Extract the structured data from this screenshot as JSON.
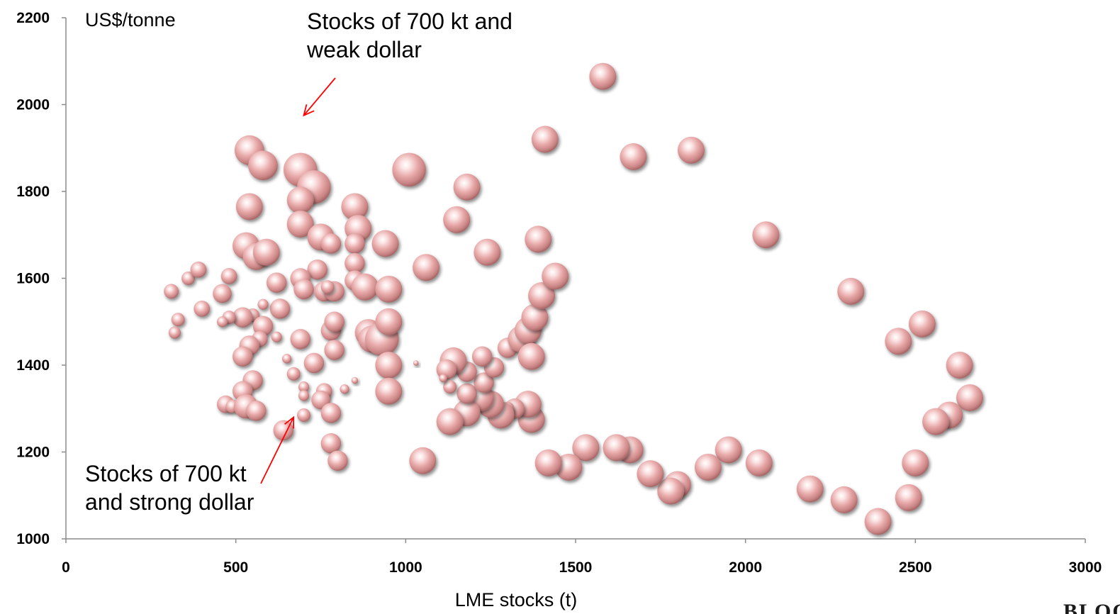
{
  "chart_data": {
    "type": "bubble",
    "xlabel": "LME stocks (t)",
    "ylabel": "US$/tonne",
    "xlim": [
      0,
      3000
    ],
    "ylim": [
      1000,
      2200
    ],
    "xticks": [
      "0",
      "500",
      "1000",
      "1500",
      "2000",
      "2500",
      "3000"
    ],
    "yticks": [
      "1000",
      "1200",
      "1400",
      "1600",
      "1800",
      "2000",
      "2200"
    ],
    "bubble_color": "#e8a9a9",
    "annotations": [
      {
        "text": [
          "Stocks of 700 kt and",
          "weak dollar"
        ],
        "points_to": [
          700,
          1975
        ]
      },
      {
        "text": [
          "Stocks of 700 kt",
          "and strong dollar"
        ],
        "points_to": [
          670,
          1280
        ]
      }
    ],
    "points": [
      [
        1580,
        2065,
        2
      ],
      [
        1410,
        1920,
        2
      ],
      [
        1670,
        1880,
        2
      ],
      [
        1840,
        1895,
        2
      ],
      [
        2060,
        1700,
        2
      ],
      [
        2310,
        1570,
        2
      ],
      [
        2450,
        1455,
        2
      ],
      [
        2520,
        1495,
        2
      ],
      [
        2630,
        1400,
        2
      ],
      [
        2660,
        1325,
        2
      ],
      [
        2600,
        1285,
        2
      ],
      [
        2560,
        1270,
        2
      ],
      [
        2500,
        1175,
        2
      ],
      [
        2480,
        1095,
        2
      ],
      [
        2390,
        1040,
        2
      ],
      [
        2290,
        1090,
        2
      ],
      [
        2190,
        1115,
        2
      ],
      [
        2040,
        1175,
        2
      ],
      [
        1950,
        1205,
        2
      ],
      [
        1890,
        1165,
        2
      ],
      [
        1800,
        1125,
        2
      ],
      [
        1780,
        1110,
        2
      ],
      [
        1720,
        1150,
        2
      ],
      [
        1660,
        1205,
        2
      ],
      [
        1620,
        1210,
        2
      ],
      [
        1530,
        1210,
        2
      ],
      [
        1480,
        1165,
        2
      ],
      [
        1420,
        1175,
        2
      ],
      [
        1370,
        1275,
        2
      ],
      [
        1360,
        1310,
        2
      ],
      [
        1320,
        1300,
        1.5
      ],
      [
        1300,
        1300,
        1
      ],
      [
        1280,
        1285,
        2
      ],
      [
        1250,
        1310,
        2
      ],
      [
        1220,
        1325,
        2
      ],
      [
        1180,
        1290,
        2
      ],
      [
        1130,
        1270,
        2
      ],
      [
        1180,
        1335,
        1.5
      ],
      [
        1230,
        1360,
        1.5
      ],
      [
        1180,
        1385,
        1.5
      ],
      [
        1260,
        1395,
        1.5
      ],
      [
        1225,
        1420,
        1.5
      ],
      [
        1140,
        1410,
        2
      ],
      [
        1120,
        1390,
        1.5
      ],
      [
        1130,
        1350,
        1
      ],
      [
        1110,
        1370,
        0.6
      ],
      [
        1300,
        1440,
        1.5
      ],
      [
        1340,
        1460,
        2
      ],
      [
        1360,
        1480,
        2
      ],
      [
        1380,
        1510,
        2
      ],
      [
        1400,
        1560,
        2
      ],
      [
        1440,
        1605,
        2
      ],
      [
        1370,
        1420,
        2
      ],
      [
        1390,
        1690,
        2
      ],
      [
        1240,
        1660,
        2
      ],
      [
        1150,
        1735,
        2
      ],
      [
        1180,
        1810,
        2
      ],
      [
        1010,
        1850,
        2.5
      ],
      [
        1060,
        1625,
        2
      ],
      [
        1050,
        1180,
        2
      ],
      [
        1030,
        1405,
        0.4
      ],
      [
        540,
        1895,
        2.2
      ],
      [
        580,
        1860,
        2.2
      ],
      [
        690,
        1850,
        2.5
      ],
      [
        730,
        1810,
        2.5
      ],
      [
        690,
        1780,
        2
      ],
      [
        850,
        1765,
        2
      ],
      [
        540,
        1765,
        2
      ],
      [
        860,
        1715,
        2
      ],
      [
        690,
        1725,
        2
      ],
      [
        750,
        1695,
        2
      ],
      [
        850,
        1680,
        1.5
      ],
      [
        940,
        1680,
        2
      ],
      [
        530,
        1675,
        2
      ],
      [
        560,
        1650,
        2
      ],
      [
        590,
        1660,
        2
      ],
      [
        780,
        1680,
        1.5
      ],
      [
        850,
        1635,
        1.5
      ],
      [
        740,
        1620,
        1.5
      ],
      [
        690,
        1600,
        1.5
      ],
      [
        620,
        1590,
        1.5
      ],
      [
        700,
        1575,
        1.5
      ],
      [
        760,
        1570,
        1.5
      ],
      [
        790,
        1570,
        1.5
      ],
      [
        850,
        1595,
        1.5
      ],
      [
        880,
        1580,
        2
      ],
      [
        950,
        1575,
        2
      ],
      [
        770,
        1580,
        1
      ],
      [
        630,
        1530,
        1.5
      ],
      [
        580,
        1540,
        0.8
      ],
      [
        550,
        1515,
        1
      ],
      [
        520,
        1510,
        1.5
      ],
      [
        480,
        1510,
        1
      ],
      [
        460,
        1500,
        0.8
      ],
      [
        400,
        1530,
        1.2
      ],
      [
        330,
        1505,
        1
      ],
      [
        320,
        1475,
        0.9
      ],
      [
        310,
        1570,
        1.1
      ],
      [
        360,
        1600,
        1
      ],
      [
        390,
        1620,
        1.2
      ],
      [
        480,
        1605,
        1.2
      ],
      [
        460,
        1565,
        1.4
      ],
      [
        580,
        1490,
        1.5
      ],
      [
        570,
        1460,
        1.2
      ],
      [
        620,
        1465,
        0.8
      ],
      [
        690,
        1460,
        1.5
      ],
      [
        540,
        1445,
        1.5
      ],
      [
        520,
        1420,
        1.5
      ],
      [
        650,
        1415,
        0.7
      ],
      [
        730,
        1405,
        1.5
      ],
      [
        780,
        1480,
        1.5
      ],
      [
        790,
        1500,
        1.5
      ],
      [
        790,
        1435,
        1.5
      ],
      [
        890,
        1475,
        2
      ],
      [
        900,
        1460,
        2
      ],
      [
        930,
        1460,
        2.5
      ],
      [
        950,
        1500,
        2
      ],
      [
        950,
        1400,
        2
      ],
      [
        950,
        1340,
        2
      ],
      [
        550,
        1365,
        1.5
      ],
      [
        670,
        1380,
        1
      ],
      [
        700,
        1350,
        0.8
      ],
      [
        700,
        1330,
        0.8
      ],
      [
        760,
        1340,
        1.2
      ],
      [
        750,
        1320,
        1.4
      ],
      [
        820,
        1345,
        0.7
      ],
      [
        850,
        1365,
        0.5
      ],
      [
        520,
        1340,
        1.5
      ],
      [
        470,
        1310,
        1.3
      ],
      [
        490,
        1305,
        1
      ],
      [
        530,
        1305,
        1.8
      ],
      [
        560,
        1295,
        1.5
      ],
      [
        640,
        1250,
        1.5
      ],
      [
        700,
        1285,
        1
      ],
      [
        780,
        1290,
        1.5
      ],
      [
        780,
        1220,
        1.5
      ],
      [
        800,
        1180,
        1.5
      ]
    ],
    "logo_text": "BLOOMSBURY"
  }
}
